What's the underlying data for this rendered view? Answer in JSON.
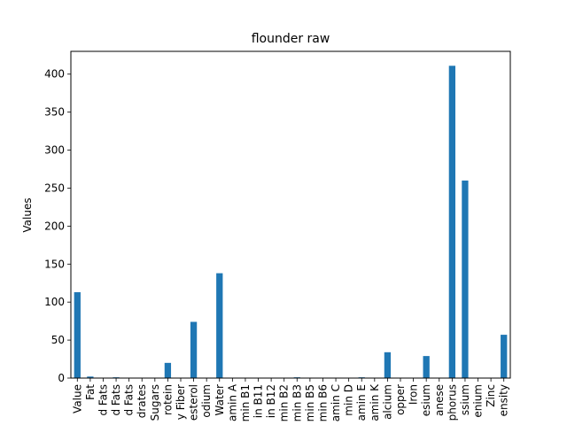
{
  "chart_data": {
    "type": "bar",
    "title": "flounder raw",
    "xlabel": "",
    "ylabel": "Values",
    "ylim": [
      0,
      430
    ],
    "yticks": [
      0,
      50,
      100,
      150,
      200,
      250,
      300,
      350,
      400
    ],
    "grid": false,
    "legend": "none",
    "bar_color": "#1f77b4",
    "categories": [
      "Value",
      "Fat",
      "d Fats",
      "d Fats",
      "d Fats",
      "drates",
      "Sugars",
      "rotein",
      "y Fiber",
      "esterol",
      "odium",
      "Water",
      "amin A",
      "min B1",
      "in B11",
      "in B12",
      "min B2",
      "min B3",
      "min B5",
      "min B6",
      "amin C",
      "min D",
      "amin E",
      "amin K",
      "alcium",
      "opper",
      "Iron",
      "esium",
      "anese",
      "phorus",
      "ssium",
      "enium",
      "Zinc",
      "ensity"
    ],
    "values": [
      113,
      2,
      0,
      1,
      0,
      0,
      0,
      20,
      0,
      74,
      0,
      138,
      0,
      0,
      0,
      0,
      0,
      1,
      0,
      0,
      0,
      0,
      1,
      0,
      34,
      0,
      0,
      29,
      0,
      411,
      260,
      0,
      0,
      57
    ]
  }
}
